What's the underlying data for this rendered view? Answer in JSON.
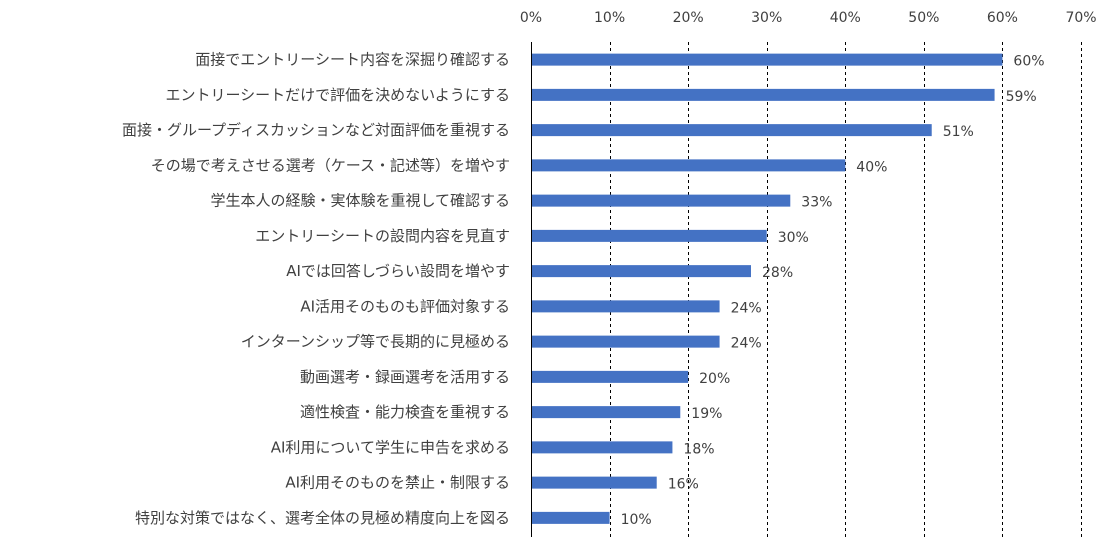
{
  "chart_data": {
    "type": "bar",
    "orientation": "horizontal",
    "x_axis_position": "top",
    "grid": true,
    "legend": "none",
    "xlim": [
      0,
      70
    ],
    "x_ticks": [
      "0%",
      "10%",
      "20%",
      "30%",
      "40%",
      "50%",
      "60%",
      "70%"
    ],
    "value_unit": "%",
    "bar_color": "#4472C4",
    "categories": [
      "面接でエントリーシート内容を深掘り確認する",
      "エントリーシートだけで評価を決めないようにする",
      "面接・グループディスカッションなど対面評価を重視する",
      "その場で考えさせる選考（ケース・記述等）を増やす",
      "学生本人の経験・実体験を重視して確認する",
      "エントリーシートの設問内容を見直す",
      "AIでは回答しづらい設問を増やす",
      "AI活用そのものも評価対象する",
      "インターンシップ等で長期的に見極める",
      "動画選考・録画選考を活用する",
      "適性検査・能力検査を重視する",
      "AI利用について学生に申告を求める",
      "AI利用そのものを禁止・制限する",
      "特別な対策ではなく、選考全体の見極め精度向上を図る"
    ],
    "values": [
      60,
      59,
      51,
      40,
      33,
      30,
      28,
      24,
      24,
      20,
      19,
      18,
      16,
      10
    ],
    "data_labels": [
      "60%",
      "59%",
      "51%",
      "40%",
      "33%",
      "30%",
      "28%",
      "24%",
      "24%",
      "20%",
      "19%",
      "18%",
      "16%",
      "10%"
    ]
  }
}
